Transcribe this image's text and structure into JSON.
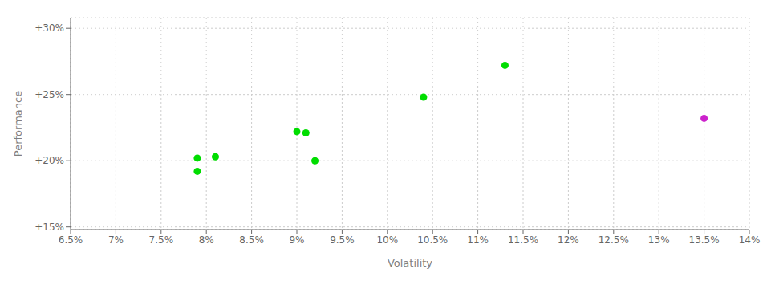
{
  "chart_data": {
    "type": "scatter",
    "xlabel": "Volatility",
    "ylabel": "Performance",
    "xlim": [
      0.065,
      0.14
    ],
    "ylim": [
      0.148,
      0.308
    ],
    "xticks": [
      {
        "value": 0.065,
        "label": "6.5%"
      },
      {
        "value": 0.07,
        "label": "7%"
      },
      {
        "value": 0.075,
        "label": "7.5%"
      },
      {
        "value": 0.08,
        "label": "8%"
      },
      {
        "value": 0.085,
        "label": "8.5%"
      },
      {
        "value": 0.09,
        "label": "9%"
      },
      {
        "value": 0.095,
        "label": "9.5%"
      },
      {
        "value": 0.1,
        "label": "10%"
      },
      {
        "value": 0.105,
        "label": "10.5%"
      },
      {
        "value": 0.11,
        "label": "11%"
      },
      {
        "value": 0.115,
        "label": "11.5%"
      },
      {
        "value": 0.12,
        "label": "12%"
      },
      {
        "value": 0.125,
        "label": "12.5%"
      },
      {
        "value": 0.13,
        "label": "13%"
      },
      {
        "value": 0.135,
        "label": "13.5%"
      },
      {
        "value": 0.14,
        "label": "14%"
      }
    ],
    "yticks": [
      {
        "value": 0.15,
        "label": "+15%"
      },
      {
        "value": 0.2,
        "label": "+20%"
      },
      {
        "value": 0.25,
        "label": "+25%"
      },
      {
        "value": 0.3,
        "label": "+30%"
      }
    ],
    "grid": true,
    "series": [
      {
        "color": "#00dd00",
        "values": [
          [
            0.079,
            0.202
          ],
          [
            0.081,
            0.203
          ],
          [
            0.079,
            0.192
          ],
          [
            0.09,
            0.222
          ],
          [
            0.091,
            0.221
          ],
          [
            0.092,
            0.2
          ],
          [
            0.104,
            0.248
          ],
          [
            0.113,
            0.272
          ]
        ]
      },
      {
        "color": "#cc22cc",
        "values": [
          [
            0.135,
            0.232
          ]
        ]
      }
    ]
  }
}
